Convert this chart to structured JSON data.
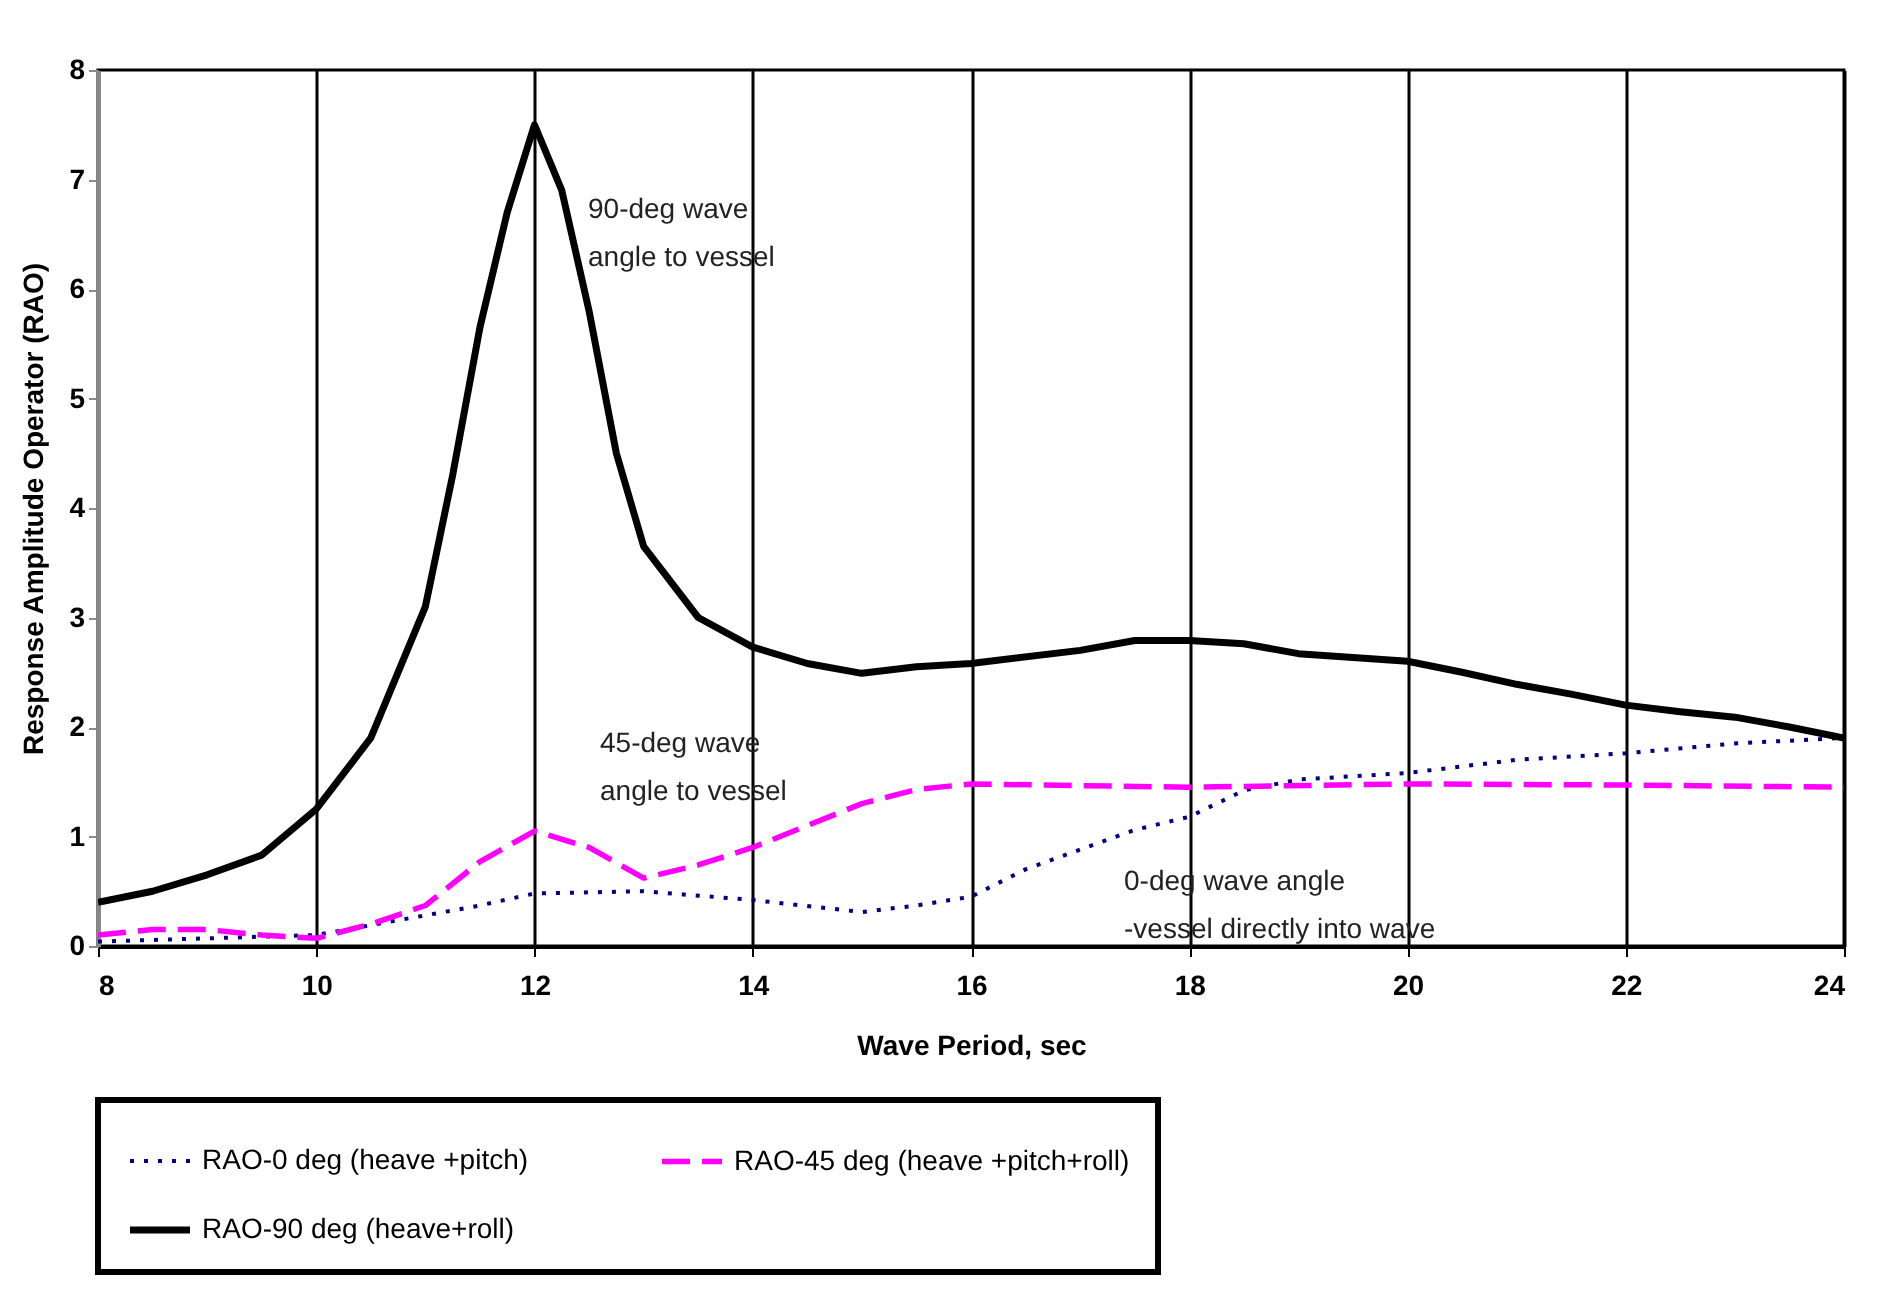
{
  "chart_data": {
    "type": "line",
    "xlabel": "Wave Period, sec",
    "ylabel": "Response Amplitude Operator (RAO)",
    "xlim": [
      8,
      24
    ],
    "xticks": [
      8,
      10,
      12,
      14,
      16,
      18,
      20,
      22,
      24
    ],
    "ylim": [
      0,
      8
    ],
    "yticks": [
      0,
      1,
      2,
      3,
      4,
      5,
      6,
      7,
      8
    ],
    "grid": "x",
    "legend": "bottom",
    "marker": "none",
    "annotations": [
      "90-deg wave\n angle to vessel",
      "45-deg wave\nangle to vessel",
      "0-deg wave angle\n-vessel directly into wave"
    ],
    "series": [
      {
        "name": "RAO-0 deg (heave +pitch)",
        "color": "#000080",
        "line_style": "dotted",
        "x": [
          8,
          9,
          10,
          11,
          11.5,
          12,
          13,
          14,
          15,
          15.5,
          16,
          16.5,
          17,
          17.5,
          18,
          18.5,
          19,
          20,
          21,
          22,
          23,
          24
        ],
        "values": [
          0.04,
          0.07,
          0.1,
          0.28,
          0.37,
          0.48,
          0.5,
          0.42,
          0.31,
          0.37,
          0.45,
          0.7,
          0.88,
          1.06,
          1.18,
          1.42,
          1.52,
          1.58,
          1.7,
          1.76,
          1.85,
          1.9
        ]
      },
      {
        "name": "RAO-45 deg (heave +pitch+roll)",
        "color": "#ff00ff",
        "line_style": "dashed",
        "x": [
          8,
          8.5,
          9,
          9.5,
          10,
          10.5,
          11,
          11.5,
          12,
          12.5,
          13,
          13.5,
          14,
          14.5,
          15,
          15.5,
          16,
          18,
          20,
          22,
          24
        ],
        "values": [
          0.1,
          0.15,
          0.15,
          0.1,
          0.07,
          0.2,
          0.37,
          0.77,
          1.05,
          0.9,
          0.62,
          0.74,
          0.9,
          1.1,
          1.3,
          1.43,
          1.48,
          1.45,
          1.48,
          1.47,
          1.45
        ]
      },
      {
        "name": "RAO-90 deg (heave+roll)",
        "color": "#000000",
        "line_style": "solid",
        "x": [
          8,
          8.5,
          9,
          9.5,
          10,
          10.5,
          11,
          11.25,
          11.5,
          11.75,
          12,
          12.25,
          12.5,
          12.75,
          13,
          13.5,
          14,
          14.5,
          15,
          15.5,
          16,
          17,
          17.5,
          18,
          18.5,
          19,
          20,
          20.5,
          21,
          21.5,
          22,
          22.5,
          23,
          23.5,
          24
        ],
        "values": [
          0.4,
          0.5,
          0.65,
          0.83,
          1.25,
          1.9,
          3.1,
          4.3,
          5.65,
          6.7,
          7.5,
          6.9,
          5.8,
          4.5,
          3.65,
          3.0,
          2.73,
          2.58,
          2.49,
          2.55,
          2.58,
          2.7,
          2.79,
          2.79,
          2.76,
          2.67,
          2.6,
          2.5,
          2.39,
          2.3,
          2.2,
          2.14,
          2.09,
          2.0,
          1.9
        ]
      }
    ]
  }
}
